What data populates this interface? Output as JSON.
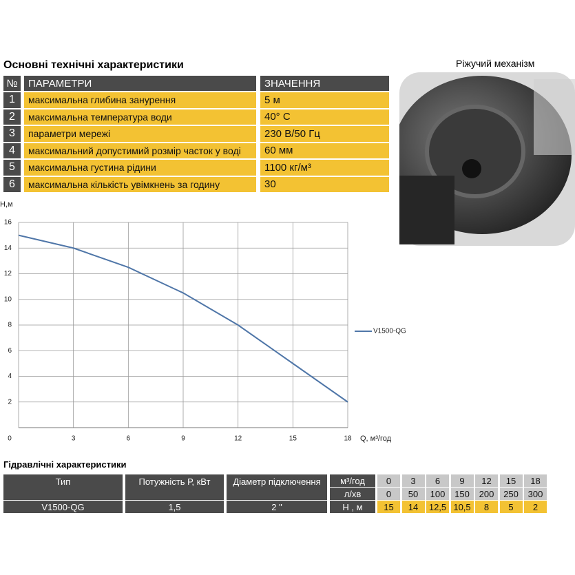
{
  "specs": {
    "title": "Основні технічні характеристики",
    "header": [
      "№",
      "ПАРАМЕТРИ",
      "ЗНАЧЕННЯ"
    ],
    "rows": [
      [
        "1",
        "максимальна глибина занурення",
        "5 м"
      ],
      [
        "2",
        "максимальна температура води",
        "40° С"
      ],
      [
        "3",
        "параметри мережі",
        "230 В/50 Гц"
      ],
      [
        "4",
        "максимальний допустимий розмір часток у воді",
        "60 мм"
      ],
      [
        "5",
        "максимальна густина рідини",
        "1100 кг/м³"
      ],
      [
        "6",
        "максимальна кількість увімкнень за годину",
        "30"
      ]
    ]
  },
  "photo": {
    "caption": "Ріжучий механізм"
  },
  "chart_data": {
    "type": "line",
    "y_label": "Н,м",
    "x_label": "Q, м³/год",
    "x": [
      0,
      3,
      6,
      9,
      12,
      15,
      18
    ],
    "series": [
      {
        "name": "V1500-QG",
        "color": "#4f76a8",
        "values": [
          15,
          14,
          12.5,
          10.5,
          8,
          5,
          2
        ]
      }
    ],
    "xlim": [
      0,
      18
    ],
    "ylim": [
      0,
      16
    ],
    "xticks": [
      0,
      3,
      6,
      9,
      12,
      15,
      18
    ],
    "yticks": [
      2,
      4,
      6,
      8,
      10,
      12,
      14,
      16
    ],
    "grid": true
  },
  "hydraulics": {
    "title": "Гідравлічні характеристики",
    "columns": [
      "Тип",
      "Потужність Р, кВт",
      "Діаметр підключення"
    ],
    "model": [
      "V1500-QG",
      "1,5",
      "2 \""
    ],
    "rows": [
      {
        "unit": "м³/год",
        "values": [
          "0",
          "3",
          "6",
          "9",
          "12",
          "15",
          "18"
        ]
      },
      {
        "unit": "л/хв",
        "values": [
          "0",
          "50",
          "100",
          "150",
          "200",
          "250",
          "300"
        ]
      },
      {
        "unit": "Н , м",
        "values": [
          "15",
          "14",
          "12,5",
          "10,5",
          "8",
          "5",
          "2"
        ]
      }
    ]
  }
}
